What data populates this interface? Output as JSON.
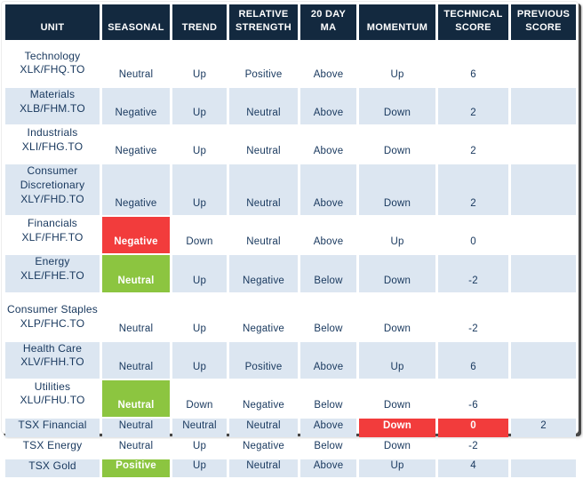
{
  "chart_data": {
    "type": "table",
    "columns": [
      {
        "id": "unit",
        "label": "UNIT"
      },
      {
        "id": "seasonal",
        "label": "SEASONAL"
      },
      {
        "id": "trend",
        "label": "TREND"
      },
      {
        "id": "relative_strength",
        "label": "RELATIVE STRENGTH"
      },
      {
        "id": "ma20",
        "label": "20 DAY MA"
      },
      {
        "id": "momentum",
        "label": "MOMENTUM"
      },
      {
        "id": "technical_score",
        "label": "TECHNICAL SCORE"
      },
      {
        "id": "previous_score",
        "label": "PREVIOUS SCORE"
      }
    ],
    "rows": [
      {
        "unit_name": "Technology",
        "unit_ticker": "XLK/FHQ.TO",
        "seasonal": "Neutral",
        "trend": "Up",
        "relative_strength": "Positive",
        "ma20": "Above",
        "momentum": "Up",
        "technical_score": "6",
        "previous_score": "",
        "highlights": {}
      },
      {
        "unit_name": "Materials",
        "unit_ticker": "XLB/FHM.TO",
        "seasonal": "Negative",
        "trend": "Up",
        "relative_strength": "Neutral",
        "ma20": "Above",
        "momentum": "Down",
        "technical_score": "2",
        "previous_score": "",
        "highlights": {}
      },
      {
        "unit_name": "Industrials",
        "unit_ticker": "XLI/FHG.TO",
        "seasonal": "Negative",
        "trend": "Up",
        "relative_strength": "Neutral",
        "ma20": "Above",
        "momentum": "Down",
        "technical_score": "2",
        "previous_score": "",
        "highlights": {}
      },
      {
        "unit_name": "Consumer Discretionary",
        "unit_ticker": "XLY/FHD.TO",
        "seasonal": "Negative",
        "trend": "Up",
        "relative_strength": "Neutral",
        "ma20": "Above",
        "momentum": "Down",
        "technical_score": "2",
        "previous_score": "",
        "highlights": {}
      },
      {
        "unit_name": "Financials",
        "unit_ticker": "XLF/FHF.TO",
        "seasonal": "Negative",
        "trend": "Down",
        "relative_strength": "Neutral",
        "ma20": "Above",
        "momentum": "Up",
        "technical_score": "0",
        "previous_score": "",
        "highlights": {
          "seasonal": "red"
        }
      },
      {
        "unit_name": "Energy",
        "unit_ticker": "XLE/FHE.TO",
        "seasonal": "Neutral",
        "trend": "Up",
        "relative_strength": "Negative",
        "ma20": "Below",
        "momentum": "Down",
        "technical_score": "-2",
        "previous_score": "",
        "highlights": {
          "seasonal": "green"
        }
      },
      {
        "unit_name": "Consumer Staples",
        "unit_ticker": "XLP/FHC.TO",
        "seasonal": "Neutral",
        "trend": "Up",
        "relative_strength": "Negative",
        "ma20": "Below",
        "momentum": "Down",
        "technical_score": "-2",
        "previous_score": "",
        "highlights": {}
      },
      {
        "unit_name": "Health Care",
        "unit_ticker": "XLV/FHH.TO",
        "seasonal": "Neutral",
        "trend": "Up",
        "relative_strength": "Positive",
        "ma20": "Above",
        "momentum": "Up",
        "technical_score": "6",
        "previous_score": "",
        "highlights": {}
      },
      {
        "unit_name": "Utilities",
        "unit_ticker": "XLU/FHU.TO",
        "seasonal": "Neutral",
        "trend": "Down",
        "relative_strength": "Negative",
        "ma20": "Below",
        "momentum": "Down",
        "technical_score": "-6",
        "previous_score": "",
        "highlights": {
          "seasonal": "green"
        }
      },
      {
        "unit_name": "TSX Financial",
        "unit_ticker": "",
        "seasonal": "Neutral",
        "trend": "Neutral",
        "relative_strength": "Neutral",
        "ma20": "Above",
        "momentum": "Down",
        "technical_score": "0",
        "previous_score": "2",
        "highlights": {
          "momentum": "red",
          "technical_score": "red"
        }
      },
      {
        "unit_name": "TSX Energy",
        "unit_ticker": "",
        "seasonal": "Neutral",
        "trend": "Up",
        "relative_strength": "Negative",
        "ma20": "Below",
        "momentum": "Down",
        "technical_score": "-2",
        "previous_score": "",
        "highlights": {}
      },
      {
        "unit_name": "TSX Gold",
        "unit_ticker": "",
        "seasonal": "Positive",
        "trend": "Up",
        "relative_strength": "Neutral",
        "ma20": "Above",
        "momentum": "Up",
        "technical_score": "4",
        "previous_score": "",
        "highlights": {
          "seasonal": "green"
        }
      }
    ],
    "colors": {
      "header_bg": "#13293f",
      "text": "#17375d",
      "row_alt": "#dce6f1",
      "red": "#f23c3c",
      "green": "#8cc540",
      "frame_shadow": "#474747"
    }
  }
}
